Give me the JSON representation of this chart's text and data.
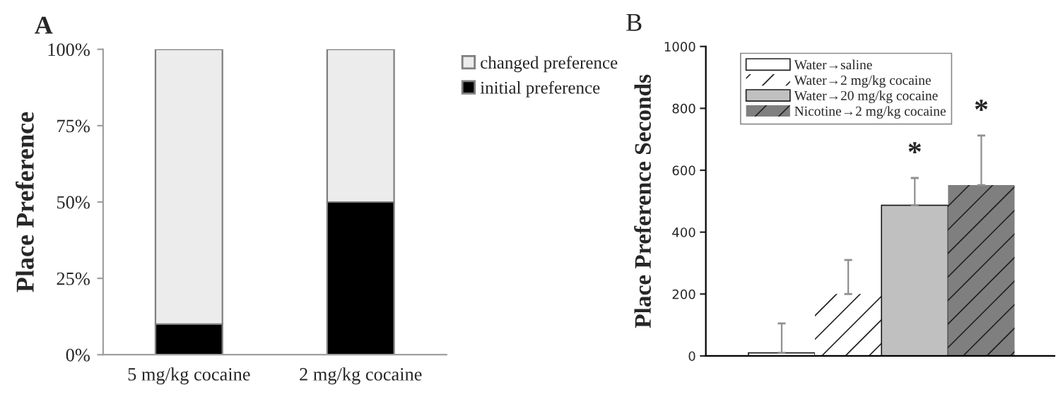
{
  "chart_data": [
    {
      "type": "bar",
      "title": "A",
      "ylabel": "Place Preference",
      "stacked": true,
      "categories": [
        "5 mg/kg cocaine",
        "2 mg/kg cocaine"
      ],
      "series": [
        {
          "name": "initial preference",
          "color": "#000000",
          "values": [
            10,
            50
          ]
        },
        {
          "name": "changed preference",
          "color": "#ececec",
          "values": [
            90,
            50
          ]
        }
      ],
      "ylim": [
        0,
        100
      ],
      "yticks": [
        {
          "value": 0,
          "label": "0%"
        },
        {
          "value": 25,
          "label": "25%"
        },
        {
          "value": 50,
          "label": "50%"
        },
        {
          "value": 75,
          "label": "75%"
        },
        {
          "value": 100,
          "label": "100%"
        }
      ],
      "legend": "top right",
      "grid": false
    },
    {
      "type": "bar",
      "title": "B",
      "ylabel": "Place Preference Seconds",
      "categories": [
        null
      ],
      "series": [
        {
          "name": "Water→saline",
          "color": "#ffffff",
          "values": [
            10
          ],
          "errors": [
            [
              10,
              105
            ]
          ]
        },
        {
          "name": "Water→2 mg/kg cocaine",
          "color": "#ffffff",
          "values": [
            200
          ],
          "errors": [
            [
              200,
              310
            ]
          ]
        },
        {
          "name": "Water→20 mg/kg cocaine",
          "color": "#c0c0c0",
          "values": [
            487
          ],
          "errors": [
            [
              487,
              575
            ]
          ]
        },
        {
          "name": "Nicotine→2 mg/kg cocaine",
          "color": "#7f7f7f",
          "values": [
            552
          ],
          "errors": [
            [
              552,
              712
            ]
          ]
        }
      ],
      "annotations": [
        "*",
        "*"
      ],
      "ylim": [
        0,
        1000
      ],
      "yticks": [
        0,
        200,
        400,
        600,
        800,
        1000
      ],
      "legend": "top left",
      "grid": false
    }
  ]
}
